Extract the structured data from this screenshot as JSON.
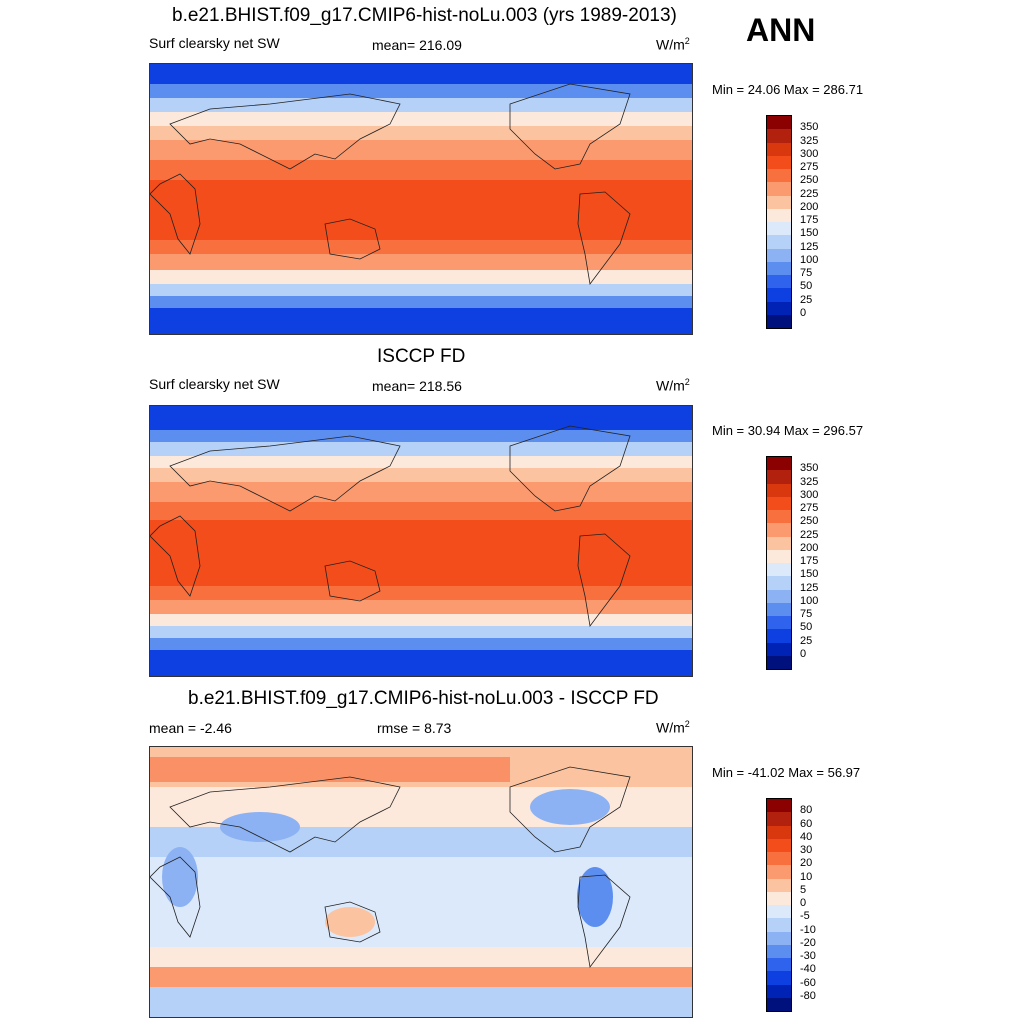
{
  "season": "ANN",
  "units_main": "W/m",
  "units_sup": "2",
  "panels": [
    {
      "title": "b.e21.BHIST.f09_g17.CMIP6-hist-noLu.003 (yrs 1989-2013)",
      "left_label": "Surf clearsky net SW",
      "center_label": "mean= 216.09",
      "minmax": "Min =  24.06 Max = 286.71",
      "levels": [
        "350",
        "325",
        "300",
        "275",
        "250",
        "225",
        "200",
        "175",
        "150",
        "125",
        "100",
        "75",
        "50",
        "25",
        "0"
      ],
      "colors": [
        "#8b0000",
        "#b2200e",
        "#d9380f",
        "#f24d1a",
        "#f9703f",
        "#fb9a6f",
        "#fcc3a0",
        "#fde9dc",
        "#dbe9fb",
        "#b5d1f7",
        "#8db2f3",
        "#5c8ef0",
        "#2f63ee",
        "#0e3fe0",
        "#0022b5",
        "#00107c"
      ]
    },
    {
      "title": "ISCCP FD",
      "left_label": "Surf clearsky net SW",
      "center_label": "mean= 218.56",
      "minmax": "Min =  30.94 Max = 296.57",
      "levels": [
        "350",
        "325",
        "300",
        "275",
        "250",
        "225",
        "200",
        "175",
        "150",
        "125",
        "100",
        "75",
        "50",
        "25",
        "0"
      ],
      "colors": [
        "#8b0000",
        "#b2200e",
        "#d9380f",
        "#f24d1a",
        "#f9703f",
        "#fb9a6f",
        "#fcc3a0",
        "#fde9dc",
        "#dbe9fb",
        "#b5d1f7",
        "#8db2f3",
        "#5c8ef0",
        "#2f63ee",
        "#0e3fe0",
        "#0022b5",
        "#00107c"
      ]
    },
    {
      "title": "b.e21.BHIST.f09_g17.CMIP6-hist-noLu.003 - ISCCP FD",
      "left_label": "mean =  -2.46",
      "center_label": "rmse =   8.73",
      "minmax": "Min = -41.02 Max =  56.97",
      "levels": [
        "80",
        "60",
        "40",
        "30",
        "20",
        "10",
        "5",
        "0",
        "-5",
        "-10",
        "-20",
        "-30",
        "-40",
        "-60",
        "-80"
      ],
      "colors": [
        "#8b0000",
        "#b2200e",
        "#d9380f",
        "#f24d1a",
        "#f9703f",
        "#fb9a6f",
        "#fcc3a0",
        "#fde9dc",
        "#dbe9fb",
        "#b5d1f7",
        "#8db2f3",
        "#5c8ef0",
        "#2f63ee",
        "#0e3fe0",
        "#0022b5",
        "#00107c"
      ]
    }
  ]
}
